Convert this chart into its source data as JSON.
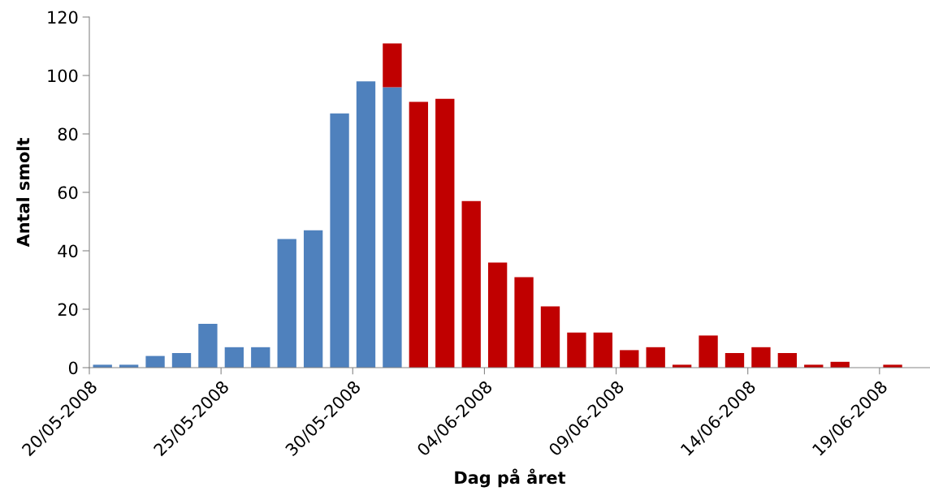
{
  "chart_data": {
    "type": "bar",
    "stacked": true,
    "xlabel": "Dag på året",
    "ylabel": "Antal smolt",
    "x": [
      "2008-05-20",
      "2008-05-21",
      "2008-05-22",
      "2008-05-23",
      "2008-05-24",
      "2008-05-25",
      "2008-05-26",
      "2008-05-27",
      "2008-05-28",
      "2008-05-29",
      "2008-05-30",
      "2008-05-31",
      "2008-06-01",
      "2008-06-02",
      "2008-06-03",
      "2008-06-04",
      "2008-06-05",
      "2008-06-06",
      "2008-06-07",
      "2008-06-08",
      "2008-06-09",
      "2008-06-10",
      "2008-06-11",
      "2008-06-12",
      "2008-06-13",
      "2008-06-14",
      "2008-06-15",
      "2008-06-16",
      "2008-06-17",
      "2008-06-18",
      "2008-06-19"
    ],
    "series": [
      {
        "color": "#4f81bd",
        "values": [
          1,
          1,
          4,
          5,
          15,
          7,
          7,
          44,
          47,
          87,
          98,
          96,
          0,
          0,
          0,
          0,
          0,
          0,
          0,
          0,
          0,
          0,
          0,
          0,
          0,
          0,
          0,
          0,
          0,
          0,
          0
        ]
      },
      {
        "color": "#c00000",
        "values": [
          0,
          0,
          0,
          0,
          0,
          0,
          0,
          0,
          0,
          0,
          0,
          15,
          91,
          92,
          57,
          36,
          31,
          21,
          12,
          12,
          6,
          7,
          1,
          11,
          5,
          7,
          5,
          1,
          2,
          0,
          1
        ]
      }
    ],
    "xlim": [
      "2008-05-19T12:00",
      "2008-06-20T10:00"
    ],
    "xticks": [
      {
        "value": "2008-05-19T12:00",
        "label": "20/05-2008"
      },
      {
        "value": "2008-05-24T12:00",
        "label": "25/05-2008"
      },
      {
        "value": "2008-05-29T12:00",
        "label": "30/05-2008"
      },
      {
        "value": "2008-06-03T12:00",
        "label": "04/06-2008"
      },
      {
        "value": "2008-06-08T12:00",
        "label": "09/06-2008"
      },
      {
        "value": "2008-06-13T12:00",
        "label": "14/06-2008"
      },
      {
        "value": "2008-06-18T12:00",
        "label": "19/06-2008"
      }
    ],
    "ylim": [
      0,
      120
    ],
    "yticks": [
      0,
      20,
      40,
      60,
      80,
      100,
      120
    ],
    "grid": false,
    "legend": false
  }
}
